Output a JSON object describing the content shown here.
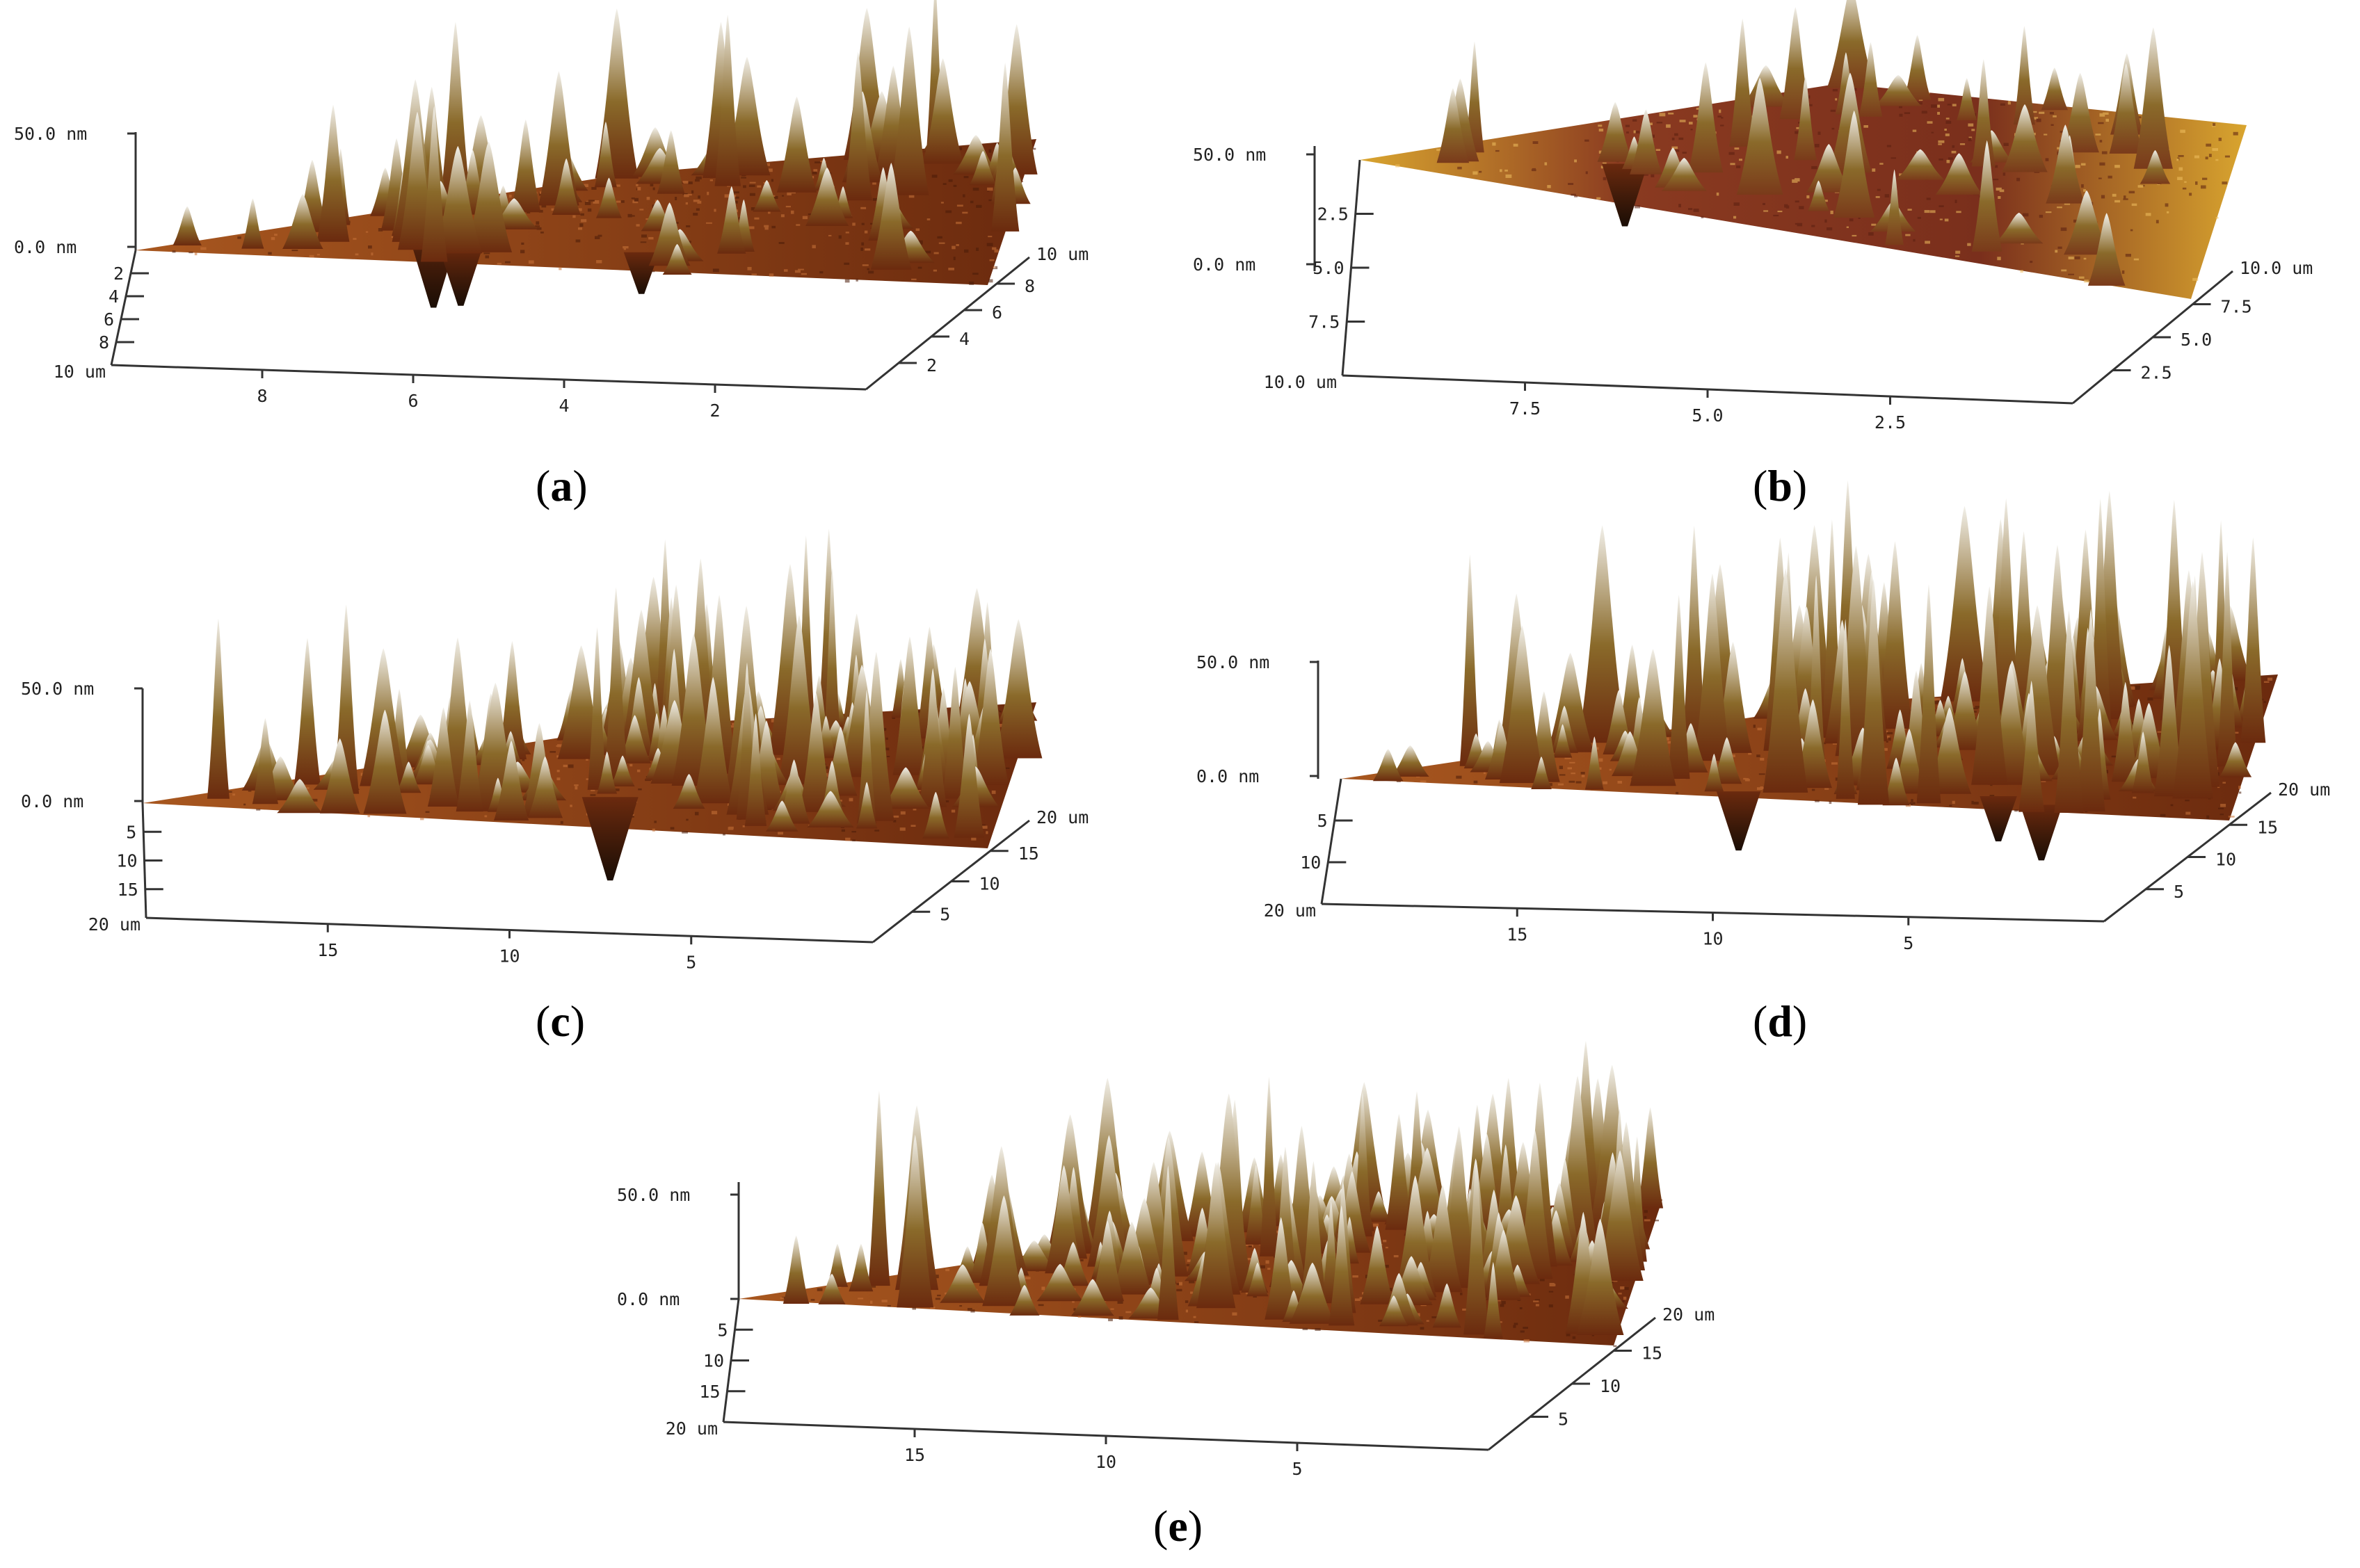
{
  "panels": [
    {
      "id": "a",
      "caption_open": "(",
      "caption_letter": "a",
      "caption_close": ")",
      "z_max": "50.0 nm",
      "z_min": "0.0 nm",
      "corner": "10 um",
      "far": "10 um",
      "x_ticks": [
        "8",
        "6",
        "4",
        "2"
      ],
      "y_left": [
        "8",
        "6",
        "4",
        "2"
      ],
      "y_right": [
        "8",
        "6",
        "4",
        "2"
      ],
      "palette": "brown"
    },
    {
      "id": "b",
      "caption_open": "(",
      "caption_letter": "b",
      "caption_close": ")",
      "z_max": "50.0 nm",
      "z_min": "0.0 nm",
      "corner": "10.0 um",
      "far": "10.0 um",
      "x_ticks": [
        "7.5",
        "5.0",
        "2.5"
      ],
      "y_left": [
        "7.5",
        "5.0",
        "2.5"
      ],
      "y_right": [
        "7.5",
        "5.0",
        "2.5"
      ],
      "palette": "gold"
    },
    {
      "id": "c",
      "caption_open": "(",
      "caption_letter": "c",
      "caption_close": ")",
      "z_max": "50.0 nm",
      "z_min": "0.0 nm",
      "corner": "20 um",
      "far": "20 um",
      "x_ticks": [
        "15",
        "10",
        "5"
      ],
      "y_left": [
        "15",
        "10",
        "5"
      ],
      "y_right": [
        "15",
        "10",
        "5"
      ],
      "palette": "brown"
    },
    {
      "id": "d",
      "caption_open": "(",
      "caption_letter": "d",
      "caption_close": ")",
      "z_max": "50.0 nm",
      "z_min": "0.0 nm",
      "corner": "20 um",
      "far": "20 um",
      "x_ticks": [
        "15",
        "10",
        "5"
      ],
      "y_left": [
        "10",
        "5"
      ],
      "y_right": [
        "15",
        "10",
        "5"
      ],
      "palette": "brown"
    },
    {
      "id": "e",
      "caption_open": "(",
      "caption_letter": "e",
      "caption_close": ")",
      "z_max": "50.0 nm",
      "z_min": "0.0 nm",
      "corner": "20 um",
      "far": "20 um",
      "x_ticks": [
        "15",
        "10",
        "5"
      ],
      "y_left": [
        "15",
        "10",
        "5"
      ],
      "y_right": [
        "15",
        "10",
        "5"
      ],
      "palette": "brown"
    }
  ],
  "colors": {
    "surface_dark": "#6b2a0e",
    "surface_mid": "#a8571f",
    "peak_mid": "#8a6a2a",
    "peak_top": "#f2f0ea",
    "gold_surface": "#d9a52f",
    "pit": "#1a0d05"
  }
}
